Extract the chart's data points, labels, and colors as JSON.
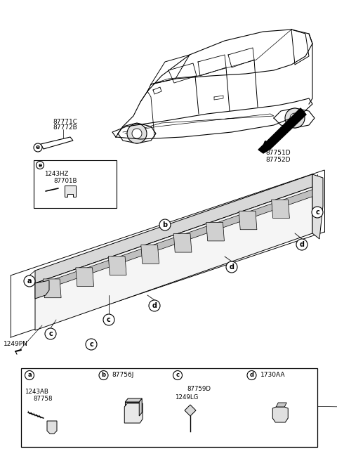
{
  "bg_color": "#ffffff",
  "line_color": "#000000",
  "text_color": "#000000",
  "parts": {
    "top_left_label1": "87771C",
    "top_left_label2": "87772B",
    "top_right_label1": "87751D",
    "top_right_label2": "87752D",
    "box_e_label1": "1243HZ",
    "box_e_label2": "87701B",
    "screw_label": "1249PN",
    "legend_a_label1": "1243AB",
    "legend_a_label2": "87758",
    "legend_b_label": "87756J",
    "legend_c_label1": "87759D",
    "legend_c_label2": "1249LG",
    "legend_d_label": "1730AA"
  },
  "figsize": [
    4.8,
    6.56
  ],
  "dpi": 100
}
